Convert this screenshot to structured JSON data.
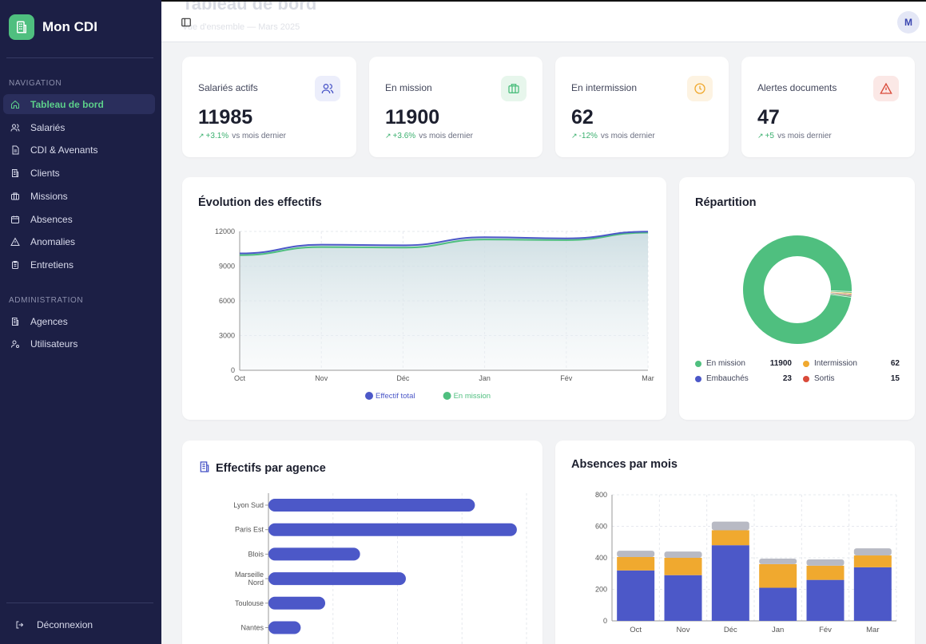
{
  "app": {
    "name": "Mon CDI"
  },
  "colors": {
    "sidebar_bg": "#1c1f45",
    "accent_green": "#4fbf7f",
    "accent_blue": "#4c58c8",
    "orange": "#f0a92f",
    "red": "#d94a3a",
    "gray": "#b8bac4"
  },
  "nav": {
    "section_label": "NAVIGATION",
    "items": [
      {
        "label": "Tableau de bord",
        "icon": "home-icon"
      },
      {
        "label": "Salariés",
        "icon": "users-icon"
      },
      {
        "label": "CDI & Avenants",
        "icon": "document-icon"
      },
      {
        "label": "Clients",
        "icon": "building-icon"
      },
      {
        "label": "Missions",
        "icon": "briefcase-icon"
      },
      {
        "label": "Absences",
        "icon": "calendar-icon"
      },
      {
        "label": "Anomalies",
        "icon": "alert-icon"
      },
      {
        "label": "Entretiens",
        "icon": "clipboard-icon"
      }
    ]
  },
  "admin": {
    "section_label": "ADMINISTRATION",
    "items": [
      {
        "label": "Agences",
        "icon": "building-icon"
      },
      {
        "label": "Utilisateurs",
        "icon": "user-cog-icon"
      }
    ]
  },
  "logout": {
    "label": "Déconnexion"
  },
  "header": {
    "title": "Tableau de bord",
    "subtitle": "Vue d'ensemble — Mars 2025",
    "avatar_initial": "M"
  },
  "stats": [
    {
      "label": "Salariés actifs",
      "value": "11985",
      "delta": "+3.1%",
      "suffix": "vs mois dernier",
      "icon": "users-icon"
    },
    {
      "label": "En mission",
      "value": "11900",
      "delta": "+3.6%",
      "suffix": "vs mois dernier",
      "icon": "briefcase-icon"
    },
    {
      "label": "En intermission",
      "value": "62",
      "delta": "-12%",
      "suffix": "vs mois dernier",
      "icon": "clock-icon"
    },
    {
      "label": "Alertes documents",
      "value": "47",
      "delta": "+5",
      "suffix": "vs mois dernier",
      "icon": "alert-icon"
    }
  ],
  "evolution": {
    "title": "Évolution des effectifs",
    "chart_data": {
      "type": "area",
      "x": [
        "Oct",
        "Nov",
        "Déc",
        "Jan",
        "Fév",
        "Mar"
      ],
      "yticks": [
        0,
        3000,
        6000,
        9000,
        12000
      ],
      "ylim": [
        0,
        12000
      ],
      "series": [
        {
          "name": "Effectif total",
          "color": "#4c58c8",
          "values": [
            10100,
            10850,
            10800,
            11500,
            11400,
            11985
          ]
        },
        {
          "name": "En mission",
          "color": "#4fbf7f",
          "values": [
            9950,
            10650,
            10600,
            11300,
            11250,
            11900
          ]
        }
      ]
    }
  },
  "repartition": {
    "title": "Répartition",
    "chart_data": {
      "type": "pie",
      "slices": [
        {
          "label": "En mission",
          "value": 11900,
          "color": "#4fbf7f"
        },
        {
          "label": "Intermission",
          "value": 62,
          "color": "#f0a92f"
        },
        {
          "label": "Embauchés",
          "value": 23,
          "color": "#4c58c8"
        },
        {
          "label": "Sortis",
          "value": 15,
          "color": "#d94a3a"
        }
      ]
    },
    "legend": [
      {
        "label": "En mission",
        "value": "11900",
        "color": "#4fbf7f"
      },
      {
        "label": "Intermission",
        "value": "62",
        "color": "#f0a92f"
      },
      {
        "label": "Embauchés",
        "value": "23",
        "color": "#4c58c8"
      },
      {
        "label": "Sortis",
        "value": "15",
        "color": "#d94a3a"
      }
    ]
  },
  "agences": {
    "title": "Effectifs par agence",
    "chart_data": {
      "type": "bar",
      "orientation": "horizontal",
      "categories": [
        "Lyon Sud",
        "Paris Est",
        "Blois",
        "Marseille Nord",
        "Toulouse",
        "Nantes"
      ],
      "values": [
        3200,
        3850,
        1420,
        2130,
        880,
        500
      ],
      "xlim": [
        0,
        4000
      ],
      "color": "#4c58c8"
    }
  },
  "absences": {
    "title": "Absences par mois",
    "chart_data": {
      "type": "bar",
      "stacked": true,
      "categories": [
        "Oct",
        "Nov",
        "Déc",
        "Jan",
        "Fév",
        "Mar"
      ],
      "yticks": [
        0,
        200,
        400,
        600,
        800
      ],
      "ylim": [
        0,
        800
      ],
      "series": [
        {
          "color": "#4c58c8",
          "values": [
            320,
            290,
            480,
            210,
            260,
            340
          ]
        },
        {
          "color": "#f0a92f",
          "values": [
            85,
            110,
            95,
            150,
            90,
            75
          ]
        },
        {
          "color": "#b8bac4",
          "values": [
            40,
            40,
            55,
            35,
            40,
            45
          ]
        }
      ]
    }
  }
}
